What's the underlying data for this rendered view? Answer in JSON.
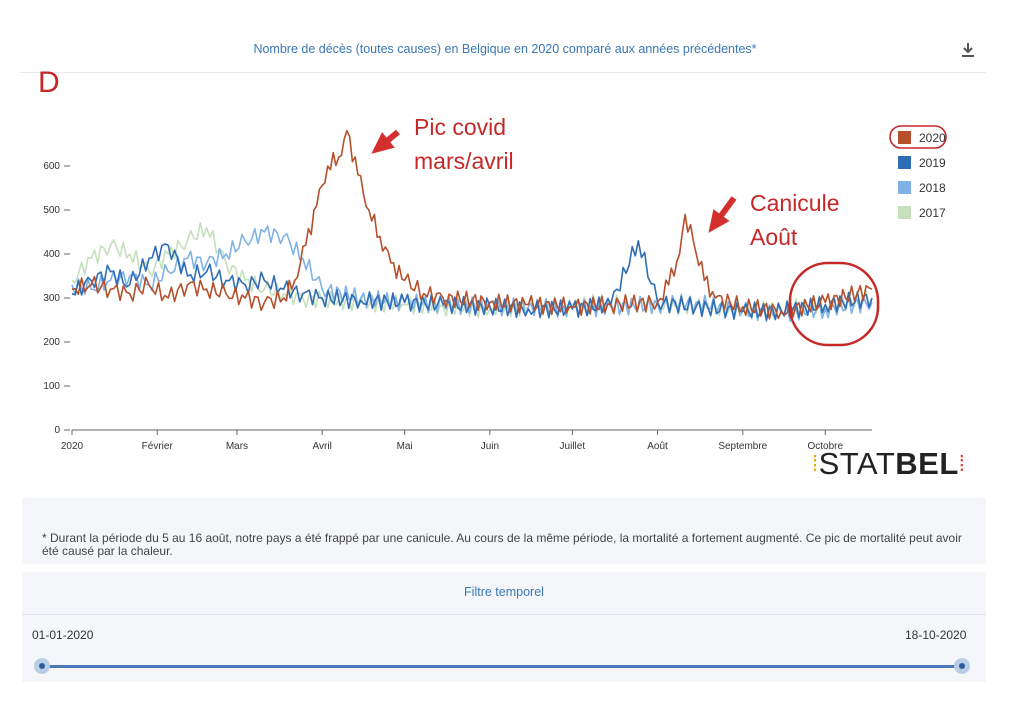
{
  "page": {
    "title": "Nombre de décès (toutes causes) en Belgique en 2020 comparé aux années précédentes*",
    "panel_label": "D",
    "download_icon": "download-icon",
    "logo_text": {
      "prefix": "STAT",
      "suffix": "BEL"
    }
  },
  "annotations": {
    "covid_line1": "Pic covid",
    "covid_line2": "mars/avril",
    "heat_line1": "Canicule",
    "heat_line2": "Août",
    "arrow_color": "#d32f2f",
    "circle_color": "#c62828"
  },
  "note": "* Durant la période du 5 au 16 août, notre pays a été frappé par une canicule. Au cours de la même période, la mortalité a fortement augmenté. Ce pic de mortalité peut avoir été causé par la chaleur.",
  "filter": {
    "title": "Filtre temporel",
    "start": "01-01-2020",
    "end": "18-10-2020",
    "range_fraction": [
      0,
      1
    ]
  },
  "legend": [
    {
      "name": "2020",
      "color": "#b5502a",
      "selected": true
    },
    {
      "name": "2019",
      "color": "#2f6db5",
      "selected": false
    },
    {
      "name": "2018",
      "color": "#7fb2e6",
      "selected": false
    },
    {
      "name": "2017",
      "color": "#c4e0bd",
      "selected": false
    }
  ],
  "chart_data": {
    "type": "line",
    "title": "Nombre de décès (toutes causes) en Belgique en 2020 comparé aux années précédentes*",
    "xlabel": "",
    "ylabel": "",
    "xlim": [
      "2020-01-01",
      "2020-10-18"
    ],
    "ylim": [
      0,
      700
    ],
    "yticks": [
      0,
      100,
      200,
      300,
      400,
      500,
      600
    ],
    "xticks": [
      {
        "label": "2020",
        "date": "2020-01-01"
      },
      {
        "label": "Février",
        "date": "2020-02-01"
      },
      {
        "label": "Mars",
        "date": "2020-03-01"
      },
      {
        "label": "Avril",
        "date": "2020-04-01"
      },
      {
        "label": "Mai",
        "date": "2020-05-01"
      },
      {
        "label": "Juin",
        "date": "2020-06-01"
      },
      {
        "label": "Juillet",
        "date": "2020-07-01"
      },
      {
        "label": "Août",
        "date": "2020-08-01"
      },
      {
        "label": "Septembre",
        "date": "2020-09-01"
      },
      {
        "label": "Octobre",
        "date": "2020-10-01"
      }
    ],
    "grid": false,
    "legend_position": "right",
    "series": [
      {
        "name": "2017",
        "color": "#c4e0bd",
        "dates": [
          "2020-01-01",
          "2020-01-08",
          "2020-01-15",
          "2020-01-22",
          "2020-01-29",
          "2020-02-05",
          "2020-02-12",
          "2020-02-19",
          "2020-02-26",
          "2020-03-04",
          "2020-03-11",
          "2020-03-18",
          "2020-03-25",
          "2020-04-01",
          "2020-04-15",
          "2020-05-01",
          "2020-05-15",
          "2020-06-01",
          "2020-06-15",
          "2020-07-01",
          "2020-07-15",
          "2020-08-01",
          "2020-08-15",
          "2020-09-01",
          "2020-09-15",
          "2020-10-01",
          "2020-10-18"
        ],
        "values": [
          340,
          390,
          420,
          400,
          360,
          400,
          430,
          460,
          380,
          340,
          320,
          310,
          300,
          295,
          290,
          285,
          280,
          275,
          280,
          285,
          290,
          285,
          280,
          270,
          275,
          285,
          300
        ]
      },
      {
        "name": "2018",
        "color": "#7fb2e6",
        "dates": [
          "2020-01-01",
          "2020-01-08",
          "2020-01-15",
          "2020-01-22",
          "2020-01-29",
          "2020-02-05",
          "2020-02-12",
          "2020-02-19",
          "2020-02-26",
          "2020-03-04",
          "2020-03-11",
          "2020-03-18",
          "2020-03-25",
          "2020-04-01",
          "2020-04-15",
          "2020-05-01",
          "2020-05-15",
          "2020-06-01",
          "2020-06-15",
          "2020-07-01",
          "2020-07-15",
          "2020-08-01",
          "2020-08-15",
          "2020-09-01",
          "2020-09-15",
          "2020-10-01",
          "2020-10-18"
        ],
        "values": [
          330,
          320,
          340,
          350,
          330,
          360,
          390,
          380,
          400,
          430,
          450,
          440,
          390,
          320,
          300,
          290,
          285,
          280,
          280,
          275,
          280,
          285,
          290,
          270,
          265,
          275,
          290
        ]
      },
      {
        "name": "2019",
        "color": "#2f6db5",
        "dates": [
          "2020-01-01",
          "2020-01-08",
          "2020-01-15",
          "2020-01-22",
          "2020-01-29",
          "2020-02-05",
          "2020-02-12",
          "2020-02-19",
          "2020-02-26",
          "2020-03-04",
          "2020-03-11",
          "2020-03-18",
          "2020-03-25",
          "2020-04-01",
          "2020-04-15",
          "2020-05-01",
          "2020-05-15",
          "2020-06-01",
          "2020-06-15",
          "2020-07-01",
          "2020-07-15",
          "2020-07-25",
          "2020-08-01",
          "2020-08-15",
          "2020-09-01",
          "2020-09-15",
          "2020-10-01",
          "2020-10-18"
        ],
        "values": [
          310,
          340,
          360,
          330,
          390,
          420,
          350,
          360,
          340,
          330,
          340,
          320,
          310,
          300,
          295,
          290,
          285,
          280,
          275,
          275,
          285,
          430,
          290,
          280,
          270,
          270,
          285,
          300
        ]
      },
      {
        "name": "2020",
        "color": "#b5502a",
        "dates": [
          "2020-01-01",
          "2020-01-08",
          "2020-01-15",
          "2020-01-22",
          "2020-01-29",
          "2020-02-05",
          "2020-02-12",
          "2020-02-19",
          "2020-02-26",
          "2020-03-04",
          "2020-03-11",
          "2020-03-18",
          "2020-03-22",
          "2020-03-26",
          "2020-03-30",
          "2020-04-03",
          "2020-04-07",
          "2020-04-10",
          "2020-04-14",
          "2020-04-18",
          "2020-04-22",
          "2020-04-26",
          "2020-05-01",
          "2020-05-08",
          "2020-05-15",
          "2020-06-01",
          "2020-06-15",
          "2020-07-01",
          "2020-07-15",
          "2020-08-01",
          "2020-08-05",
          "2020-08-09",
          "2020-08-11",
          "2020-08-14",
          "2020-08-18",
          "2020-08-22",
          "2020-09-01",
          "2020-09-15",
          "2020-10-01",
          "2020-10-18"
        ],
        "values": [
          320,
          330,
          320,
          310,
          330,
          300,
          330,
          320,
          310,
          300,
          290,
          300,
          340,
          420,
          510,
          600,
          620,
          680,
          580,
          500,
          440,
          380,
          340,
          310,
          300,
          290,
          285,
          280,
          285,
          290,
          330,
          400,
          490,
          430,
          340,
          300,
          280,
          270,
          290,
          320
        ]
      }
    ]
  }
}
